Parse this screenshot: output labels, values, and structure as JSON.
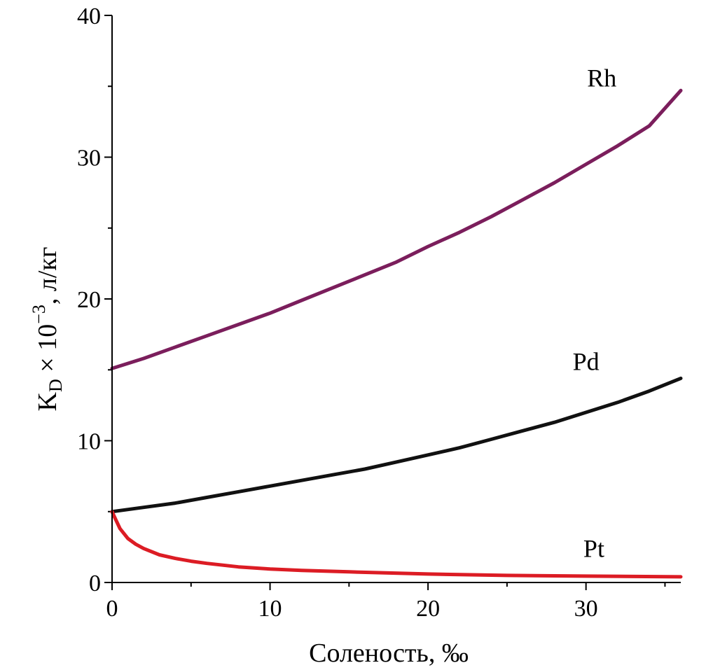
{
  "chart_data": {
    "type": "line",
    "title": "",
    "xlabel": "Соленость, ‰",
    "ylabel": {
      "main": "K",
      "sub": "D",
      "mid": " × 10",
      "sup": "−3",
      "tail": ", л/кг"
    },
    "xlim": [
      0,
      36
    ],
    "ylim": [
      0,
      40
    ],
    "x_ticks": [
      "0",
      "10",
      "20",
      "30"
    ],
    "y_ticks": [
      "0",
      "10",
      "20",
      "30",
      "40"
    ],
    "series": [
      {
        "name": "Rh",
        "color": "#7b1e5c",
        "x": [
          0,
          2,
          4,
          6,
          8,
          10,
          12,
          14,
          16,
          18,
          20,
          22,
          24,
          26,
          28,
          30,
          32,
          34,
          36
        ],
        "values": [
          15.1,
          15.8,
          16.6,
          17.4,
          18.2,
          19.0,
          19.9,
          20.8,
          21.7,
          22.6,
          23.7,
          24.7,
          25.8,
          27.0,
          28.2,
          29.5,
          30.8,
          32.2,
          34.7
        ]
      },
      {
        "name": "Pd",
        "color": "#111111",
        "x": [
          0,
          2,
          4,
          6,
          8,
          10,
          12,
          14,
          16,
          18,
          20,
          22,
          24,
          26,
          28,
          30,
          32,
          34,
          36
        ],
        "values": [
          5.0,
          5.3,
          5.6,
          6.0,
          6.4,
          6.8,
          7.2,
          7.6,
          8.0,
          8.5,
          9.0,
          9.5,
          10.1,
          10.7,
          11.3,
          12.0,
          12.7,
          13.5,
          14.4
        ]
      },
      {
        "name": "Pt",
        "color": "#dc1c24",
        "x": [
          0,
          0.25,
          0.5,
          1,
          1.5,
          2,
          3,
          4,
          5,
          6,
          8,
          10,
          12,
          15,
          20,
          25,
          30,
          36
        ],
        "values": [
          5.0,
          4.4,
          3.8,
          3.1,
          2.7,
          2.4,
          1.95,
          1.7,
          1.5,
          1.35,
          1.1,
          0.95,
          0.85,
          0.75,
          0.6,
          0.5,
          0.45,
          0.4
        ]
      }
    ]
  }
}
